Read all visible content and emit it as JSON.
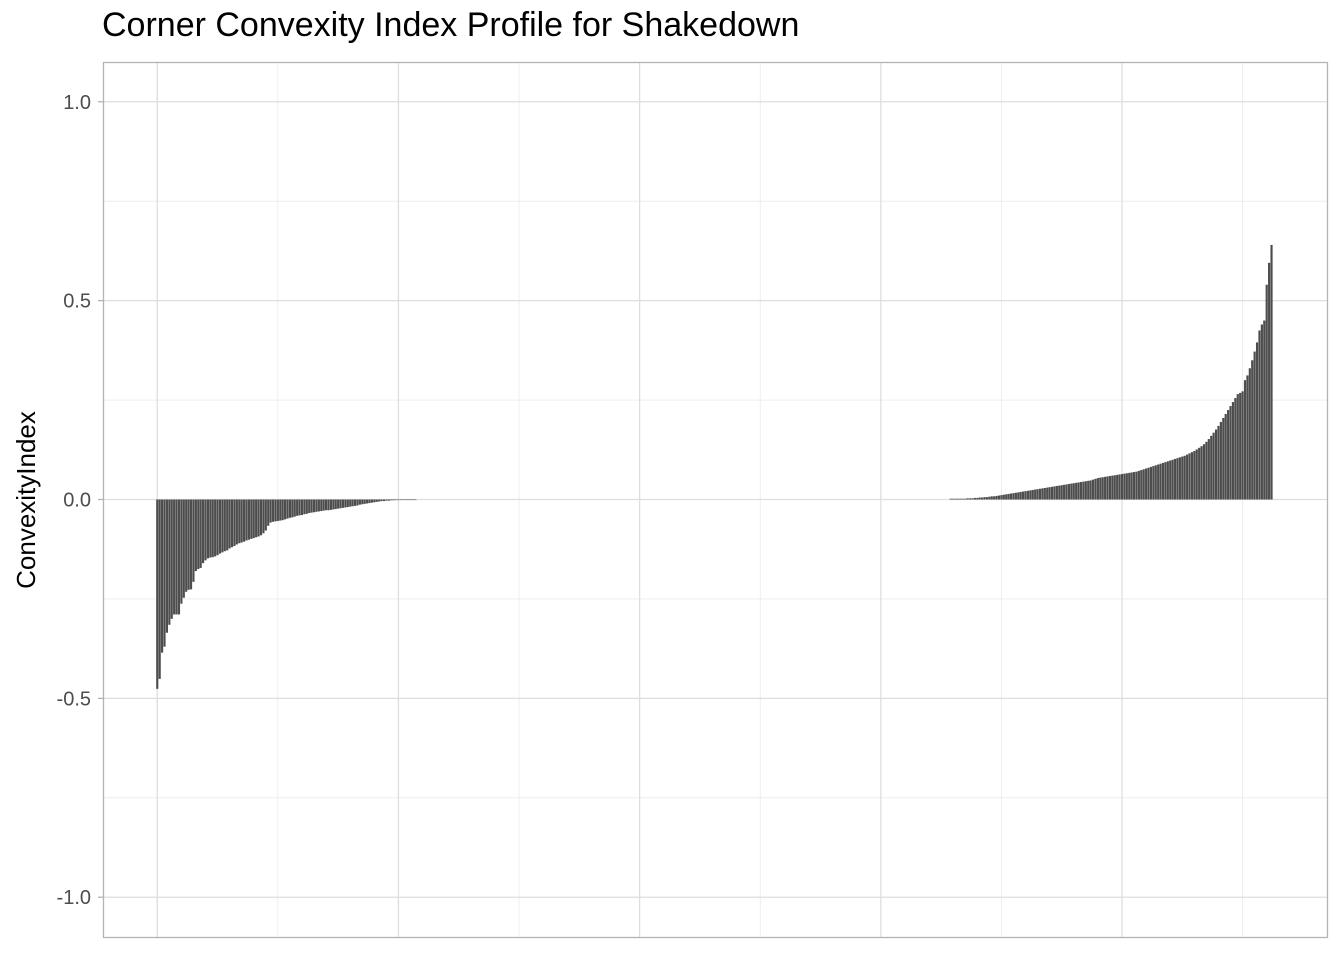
{
  "chart_data": {
    "type": "bar",
    "title": "Corner Convexity Index Profile for Shakedown",
    "xlabel": "",
    "ylabel": "ConvexityIndex",
    "ylim": [
      -1.1,
      1.1
    ],
    "xlim": [
      -22.5,
      485
    ],
    "y_ticks": [
      1.0,
      0.5,
      0.0,
      -0.5,
      -1.0
    ],
    "y_tick_labels": [
      "1.0",
      "0.5",
      "0.0",
      "-0.5",
      "-1.0"
    ],
    "x_major_gridlines": [
      0,
      100,
      200,
      300,
      400
    ],
    "x_minor_gridlines": [
      50,
      150,
      250,
      350,
      450
    ],
    "grid": true,
    "bar_color": "#4d4d4d",
    "negative_values": [
      -0.476,
      -0.451,
      -0.385,
      -0.37,
      -0.335,
      -0.315,
      -0.3,
      -0.289,
      -0.289,
      -0.289,
      -0.262,
      -0.247,
      -0.232,
      -0.227,
      -0.226,
      -0.207,
      -0.18,
      -0.175,
      -0.172,
      -0.16,
      -0.153,
      -0.148,
      -0.146,
      -0.145,
      -0.143,
      -0.14,
      -0.136,
      -0.133,
      -0.13,
      -0.128,
      -0.123,
      -0.12,
      -0.117,
      -0.113,
      -0.11,
      -0.108,
      -0.106,
      -0.103,
      -0.101,
      -0.099,
      -0.097,
      -0.095,
      -0.093,
      -0.09,
      -0.085,
      -0.078,
      -0.066,
      -0.058,
      -0.056,
      -0.055,
      -0.054,
      -0.053,
      -0.052,
      -0.05,
      -0.048,
      -0.046,
      -0.045,
      -0.043,
      -0.041,
      -0.04,
      -0.039,
      -0.037,
      -0.036,
      -0.034,
      -0.033,
      -0.032,
      -0.031,
      -0.03,
      -0.029,
      -0.028,
      -0.027,
      -0.027,
      -0.026,
      -0.025,
      -0.024,
      -0.023,
      -0.022,
      -0.021,
      -0.02,
      -0.019,
      -0.018,
      -0.017,
      -0.016,
      -0.015,
      -0.013,
      -0.012,
      -0.011,
      -0.01,
      -0.009,
      -0.008,
      -0.007,
      -0.006,
      -0.005,
      -0.004,
      -0.004,
      -0.003,
      -0.003,
      -0.002,
      -0.002,
      -0.001,
      -0.001,
      -0.001,
      -0.001,
      -0.001,
      -0.001,
      -0.001,
      -0.001,
      -0.001
    ],
    "positive_values": [
      0.002,
      0.002,
      0.002,
      0.002,
      0.002,
      0.002,
      0.002,
      0.003,
      0.003,
      0.003,
      0.004,
      0.004,
      0.005,
      0.005,
      0.006,
      0.006,
      0.007,
      0.008,
      0.008,
      0.009,
      0.01,
      0.011,
      0.012,
      0.013,
      0.014,
      0.015,
      0.016,
      0.017,
      0.018,
      0.019,
      0.02,
      0.021,
      0.022,
      0.023,
      0.024,
      0.025,
      0.026,
      0.027,
      0.028,
      0.029,
      0.03,
      0.031,
      0.032,
      0.033,
      0.034,
      0.035,
      0.036,
      0.037,
      0.038,
      0.039,
      0.04,
      0.041,
      0.042,
      0.043,
      0.044,
      0.045,
      0.046,
      0.047,
      0.048,
      0.05,
      0.052,
      0.054,
      0.055,
      0.056,
      0.057,
      0.058,
      0.059,
      0.06,
      0.061,
      0.062,
      0.063,
      0.064,
      0.065,
      0.066,
      0.067,
      0.068,
      0.069,
      0.07,
      0.072,
      0.074,
      0.076,
      0.078,
      0.08,
      0.082,
      0.084,
      0.086,
      0.088,
      0.09,
      0.092,
      0.094,
      0.096,
      0.098,
      0.1,
      0.102,
      0.104,
      0.106,
      0.108,
      0.11,
      0.113,
      0.116,
      0.119,
      0.122,
      0.126,
      0.13,
      0.134,
      0.139,
      0.145,
      0.152,
      0.16,
      0.168,
      0.176,
      0.185,
      0.195,
      0.205,
      0.215,
      0.225,
      0.235,
      0.245,
      0.255,
      0.265,
      0.268,
      0.272,
      0.3,
      0.312,
      0.33,
      0.35,
      0.372,
      0.395,
      0.425,
      0.44,
      0.45,
      0.54,
      0.595,
      0.64
    ]
  }
}
